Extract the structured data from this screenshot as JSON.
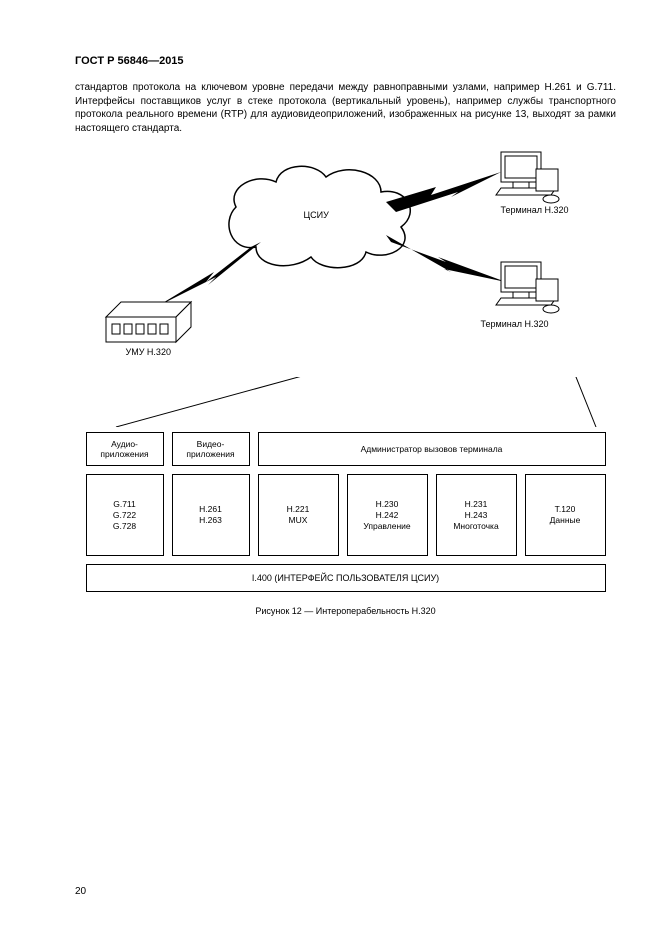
{
  "header": "ГОСТ Р 56846—2015",
  "paragraph": "стандартов протокола на ключевом уровне передачи между равноправными узлами, например H.261 и G.711. Интерфейсы поставщиков услуг в стеке протокола (вертикальный уровень), например службы транспортного протокола реального времени (RTP) для аудиовидеоприложений, изображенных на рисунке 13, выходят за рамки настоящего стандарта.",
  "net": {
    "cloud_label": "ЦСИУ",
    "terminal1": "Терминал H.320",
    "terminal2": "Терминал H.320",
    "umu": "УМУ H.320"
  },
  "stack": {
    "row1": {
      "audio": "Аудио-\nприложения",
      "video": "Видео-\nприложения",
      "admin": "Администратор вызовов терминала"
    },
    "row2": {
      "c1": "G.711\nG.722\nG.728",
      "c2": "H.261\nH.263",
      "c3": "H.221\nMUX",
      "c4": "H.230\nH.242\nУправление",
      "c5": "H.231\nH.243\nМноготочка",
      "c6": "T.120\nДанные"
    },
    "row3": "I.400 (ИНТЕРФЕЙС ПОЛЬЗОВАТЕЛЯ ЦСИУ)"
  },
  "caption": "Рисунок 12 — Интероперабельность H.320",
  "pagenum": "20",
  "colors": {
    "stroke": "#000000",
    "bg": "#ffffff"
  }
}
